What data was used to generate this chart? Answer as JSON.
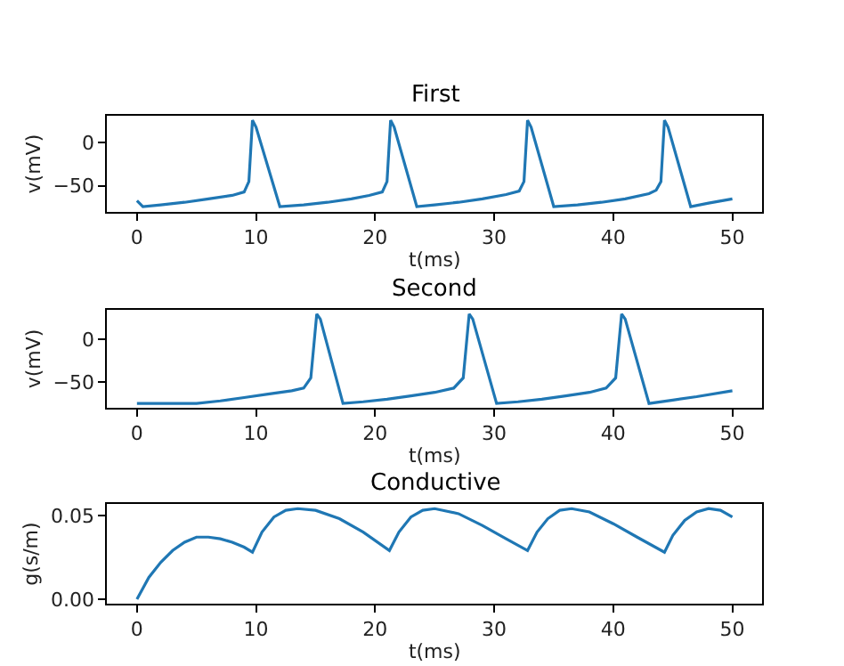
{
  "chart_data": [
    {
      "type": "line",
      "title": "First",
      "xlabel": "t(ms)",
      "ylabel": "v(mV)",
      "xlim": [
        -2.5,
        52.5
      ],
      "ylim": [
        -80,
        31
      ],
      "xticks": [
        0,
        10,
        20,
        30,
        40,
        50
      ],
      "yticks": [
        {
          "value": -50,
          "label": "−50"
        },
        0
      ],
      "series": [
        {
          "color": "#1f77b4",
          "x": [
            0,
            0.5,
            2,
            4,
            6,
            8,
            9,
            9.4,
            9.7,
            10,
            12,
            14,
            16,
            18,
            19.5,
            20.6,
            21,
            21.3,
            21.6,
            23.5,
            25,
            27,
            29,
            31,
            32.1,
            32.5,
            32.8,
            33.1,
            35,
            37,
            39,
            41,
            43,
            43.6,
            44,
            44.3,
            44.6,
            46.5,
            48,
            50
          ],
          "values": [
            -67,
            -74,
            -72,
            -69,
            -65,
            -61,
            -57,
            -45,
            26,
            18,
            -74,
            -72,
            -69,
            -65,
            -61,
            -57,
            -45,
            26,
            18,
            -74,
            -72,
            -69,
            -65,
            -60,
            -56,
            -45,
            26,
            18,
            -74,
            -72,
            -69,
            -65,
            -59,
            -55,
            -45,
            26,
            18,
            -74,
            -70,
            -65
          ]
        }
      ]
    },
    {
      "type": "line",
      "title": "Second",
      "xlabel": "t(ms)",
      "ylabel": "v(mV)",
      "xlim": [
        -2.5,
        52.5
      ],
      "ylim": [
        -80,
        35
      ],
      "xticks": [
        0,
        10,
        20,
        30,
        40,
        50
      ],
      "yticks": [
        {
          "value": -50,
          "label": "−50"
        },
        0
      ],
      "series": [
        {
          "color": "#1f77b4",
          "x": [
            0,
            5,
            7,
            9,
            11,
            13,
            14,
            14.6,
            15.1,
            15.4,
            17.3,
            19,
            21,
            23,
            25,
            26.6,
            27.4,
            27.9,
            28.2,
            30.2,
            32,
            34,
            36,
            38,
            39.4,
            40.2,
            40.7,
            41,
            43,
            45,
            47,
            50
          ],
          "values": [
            -75,
            -75,
            -72,
            -68,
            -64,
            -60,
            -57,
            -45,
            30,
            24,
            -75,
            -73,
            -70,
            -66,
            -62,
            -57,
            -45,
            30,
            24,
            -75,
            -73,
            -70,
            -66,
            -62,
            -57,
            -45,
            30,
            24,
            -75,
            -71,
            -67,
            -60
          ]
        }
      ]
    },
    {
      "type": "line",
      "title": "Conductive",
      "xlabel": "t(ms)",
      "ylabel": "g(s/m)",
      "xlim": [
        -2.5,
        52.5
      ],
      "ylim": [
        -0.0027,
        0.0567
      ],
      "xticks": [
        0,
        10,
        20,
        30,
        40,
        50
      ],
      "yticks": [
        {
          "value": 0,
          "label": "0.00"
        },
        {
          "value": 0.05,
          "label": "0.05"
        }
      ],
      "series": [
        {
          "color": "#1f77b4",
          "x": [
            0,
            1,
            2,
            3,
            4,
            5,
            6,
            7,
            8,
            9,
            9.7,
            10.5,
            11.5,
            12.5,
            13.5,
            15,
            17,
            19,
            21.2,
            22,
            23,
            24,
            25,
            27,
            29,
            31,
            32.8,
            33.6,
            34.5,
            35.5,
            36.5,
            38,
            40,
            42,
            44.3,
            45,
            46,
            47,
            48,
            49,
            50
          ],
          "values": [
            0,
            0.013,
            0.022,
            0.029,
            0.034,
            0.037,
            0.037,
            0.036,
            0.034,
            0.031,
            0.028,
            0.04,
            0.049,
            0.053,
            0.054,
            0.053,
            0.048,
            0.04,
            0.029,
            0.04,
            0.049,
            0.053,
            0.054,
            0.051,
            0.044,
            0.036,
            0.029,
            0.04,
            0.048,
            0.053,
            0.054,
            0.052,
            0.045,
            0.037,
            0.028,
            0.038,
            0.047,
            0.052,
            0.054,
            0.053,
            0.049
          ]
        }
      ]
    }
  ]
}
